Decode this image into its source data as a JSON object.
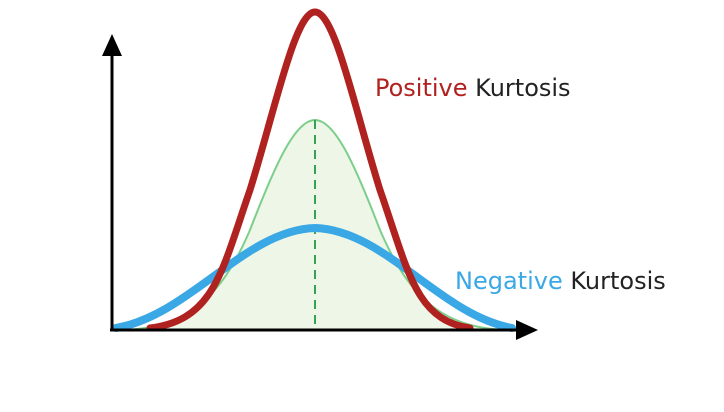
{
  "labels": {
    "positive": {
      "word": "Positive",
      "rest": " Kurtosis"
    },
    "negative": {
      "word": "Negative",
      "rest": " Kurtosis"
    }
  },
  "colors": {
    "positive": "#b0221f",
    "negative": "#3aa8e4",
    "normal_line": "#7ccf8a",
    "normal_fill": "#eef6e8",
    "mean_line": "#35a353",
    "axis": "#000000",
    "label_text": "#222222"
  },
  "curves": {
    "positive": "leptokurtic",
    "normal": "mesokurtic",
    "negative": "platykurtic"
  }
}
